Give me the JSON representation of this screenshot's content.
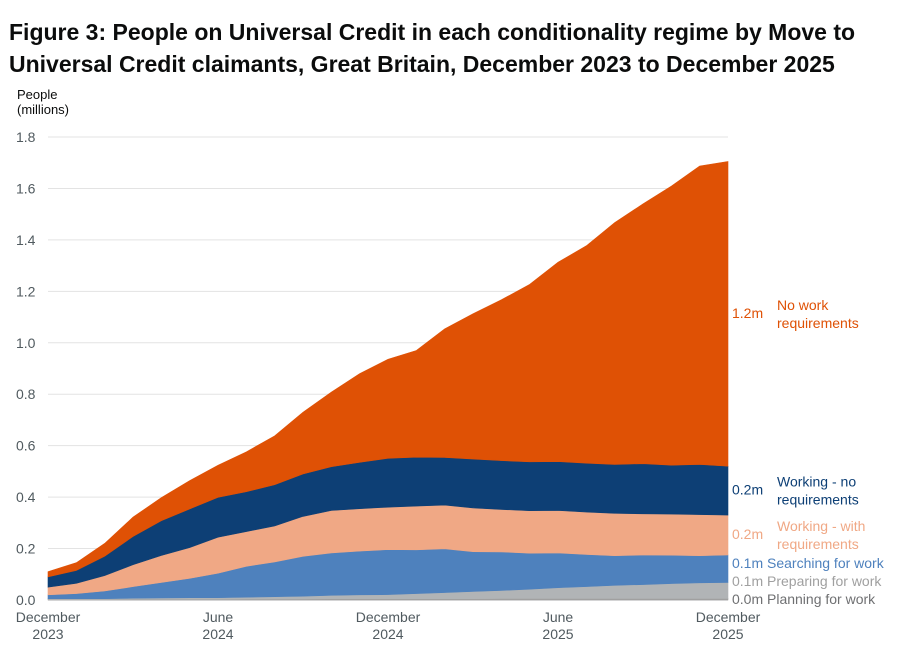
{
  "title": {
    "line1": "Figure 3: People on Universal Credit in each conditionality regime by Move to",
    "line2": "Universal Credit claimants, Great Britain, December 2023 to December 2025"
  },
  "chart_data": {
    "type": "area",
    "stacked": true,
    "title": "Figure 3: People on Universal Credit in each conditionality regime by Move to Universal Credit claimants, Great Britain, December 2023 to December 2025",
    "ylabel": [
      "People",
      "(millions)"
    ],
    "xlabel": "",
    "ylim": [
      0,
      1.8
    ],
    "yticks": [
      "0.0",
      "0.2",
      "0.4",
      "0.6",
      "0.8",
      "1.0",
      "1.2",
      "1.4",
      "1.6",
      "1.8"
    ],
    "grid": true,
    "legend": "direct labels at right end",
    "x": [
      "2023-12",
      "2024-01",
      "2024-02",
      "2024-03",
      "2024-04",
      "2024-05",
      "2024-06",
      "2024-07",
      "2024-08",
      "2024-09",
      "2024-10",
      "2024-11",
      "2024-12",
      "2025-01",
      "2025-02",
      "2025-03",
      "2025-04",
      "2025-05",
      "2025-06",
      "2025-07",
      "2025-08",
      "2025-09",
      "2025-10",
      "2025-11",
      "2025-12"
    ],
    "xticks": [
      {
        "x": "2023-12",
        "line1": "December",
        "line2": "2023"
      },
      {
        "x": "2024-06",
        "line1": "June",
        "line2": "2024"
      },
      {
        "x": "2024-12",
        "line1": "December",
        "line2": "2024"
      },
      {
        "x": "2025-06",
        "line1": "June",
        "line2": "2025"
      },
      {
        "x": "2025-12",
        "line1": "December",
        "line2": "2025"
      }
    ],
    "series": [
      {
        "name": "Planning for work",
        "end_label": "0.0m",
        "label_lines": [
          "Planning for work"
        ],
        "color": "#a0a0a0",
        "label_color": "#6f7072",
        "values": [
          0.002,
          0.002,
          0.002,
          0.003,
          0.003,
          0.003,
          0.003,
          0.004,
          0.004,
          0.004,
          0.005,
          0.005,
          0.005,
          0.005,
          0.005,
          0.005,
          0.006,
          0.006,
          0.006,
          0.006,
          0.006,
          0.006,
          0.006,
          0.006,
          0.006
        ]
      },
      {
        "name": "Preparing for work",
        "end_label": "0.1m",
        "label_lines": [
          "Preparing for work"
        ],
        "color": "#b1b4b6",
        "label_color": "#a0a0a0",
        "values": [
          0.003,
          0.003,
          0.003,
          0.004,
          0.005,
          0.006,
          0.006,
          0.007,
          0.009,
          0.011,
          0.013,
          0.015,
          0.016,
          0.02,
          0.024,
          0.028,
          0.031,
          0.036,
          0.042,
          0.046,
          0.051,
          0.054,
          0.058,
          0.061,
          0.062
        ]
      },
      {
        "name": "Searching for work",
        "end_label": "0.1m",
        "label_lines": [
          "Searching for work"
        ],
        "color": "#4e81bd",
        "label_color": "#4e81bd",
        "values": [
          0.015,
          0.02,
          0.03,
          0.045,
          0.06,
          0.075,
          0.095,
          0.12,
          0.135,
          0.155,
          0.165,
          0.17,
          0.175,
          0.17,
          0.17,
          0.155,
          0.15,
          0.14,
          0.135,
          0.125,
          0.115,
          0.115,
          0.11,
          0.105,
          0.107
        ]
      },
      {
        "name": "Working - with requirements",
        "end_label": "0.2m",
        "label_lines": [
          "Working - with",
          "requirements"
        ],
        "color": "#f0a885",
        "label_color": "#f0a885",
        "values": [
          0.03,
          0.04,
          0.06,
          0.085,
          0.105,
          0.12,
          0.14,
          0.135,
          0.14,
          0.155,
          0.165,
          0.165,
          0.165,
          0.17,
          0.17,
          0.17,
          0.165,
          0.165,
          0.165,
          0.165,
          0.165,
          0.16,
          0.16,
          0.16,
          0.155
        ]
      },
      {
        "name": "Working - no requirements",
        "end_label": "0.2m",
        "label_lines": [
          "Working - no",
          "requirements"
        ],
        "color": "#0d3f75",
        "label_color": "#0d3f75",
        "values": [
          0.04,
          0.05,
          0.075,
          0.11,
          0.135,
          0.15,
          0.155,
          0.155,
          0.16,
          0.165,
          0.17,
          0.18,
          0.19,
          0.19,
          0.185,
          0.19,
          0.19,
          0.19,
          0.19,
          0.19,
          0.19,
          0.195,
          0.19,
          0.195,
          0.19
        ]
      },
      {
        "name": "No work requirements",
        "end_label": "1.2m",
        "label_lines": [
          "No work",
          "requirements"
        ],
        "color": "#df5105",
        "label_color": "#df5105",
        "values": [
          0.02,
          0.03,
          0.05,
          0.075,
          0.09,
          0.11,
          0.125,
          0.155,
          0.19,
          0.24,
          0.29,
          0.345,
          0.385,
          0.415,
          0.5,
          0.565,
          0.625,
          0.69,
          0.775,
          0.845,
          0.94,
          1.01,
          1.085,
          1.16,
          1.185
        ]
      }
    ]
  }
}
